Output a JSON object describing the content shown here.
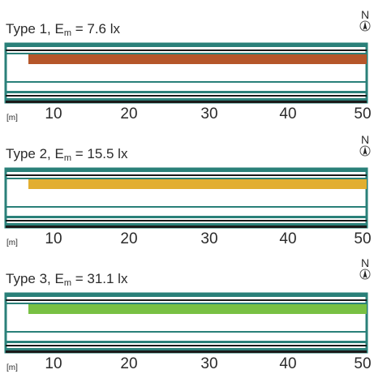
{
  "panels": [
    {
      "type_prefix": "Type 1, E",
      "subscript": "m",
      "value_text": " = 7.6 lx",
      "north": "N",
      "unit": "[m]",
      "bar_color": "#b5562a",
      "ticks": [
        "10",
        "20",
        "30",
        "40",
        "50"
      ]
    },
    {
      "type_prefix": "Type 2, E",
      "subscript": "m",
      "value_text": " = 15.5 lx",
      "north": "N",
      "unit": "[m]",
      "bar_color": "#e2ae30",
      "ticks": [
        "10",
        "20",
        "30",
        "40",
        "50"
      ]
    },
    {
      "type_prefix": "Type 3, E",
      "subscript": "m",
      "value_text": " = 31.1 lx",
      "north": "N",
      "unit": "[m]",
      "bar_color": "#78c043",
      "ticks": [
        "10",
        "20",
        "30",
        "40",
        "50"
      ]
    }
  ],
  "colors": {
    "teal": "#2a8079",
    "dark": "#1a1a1a"
  }
}
